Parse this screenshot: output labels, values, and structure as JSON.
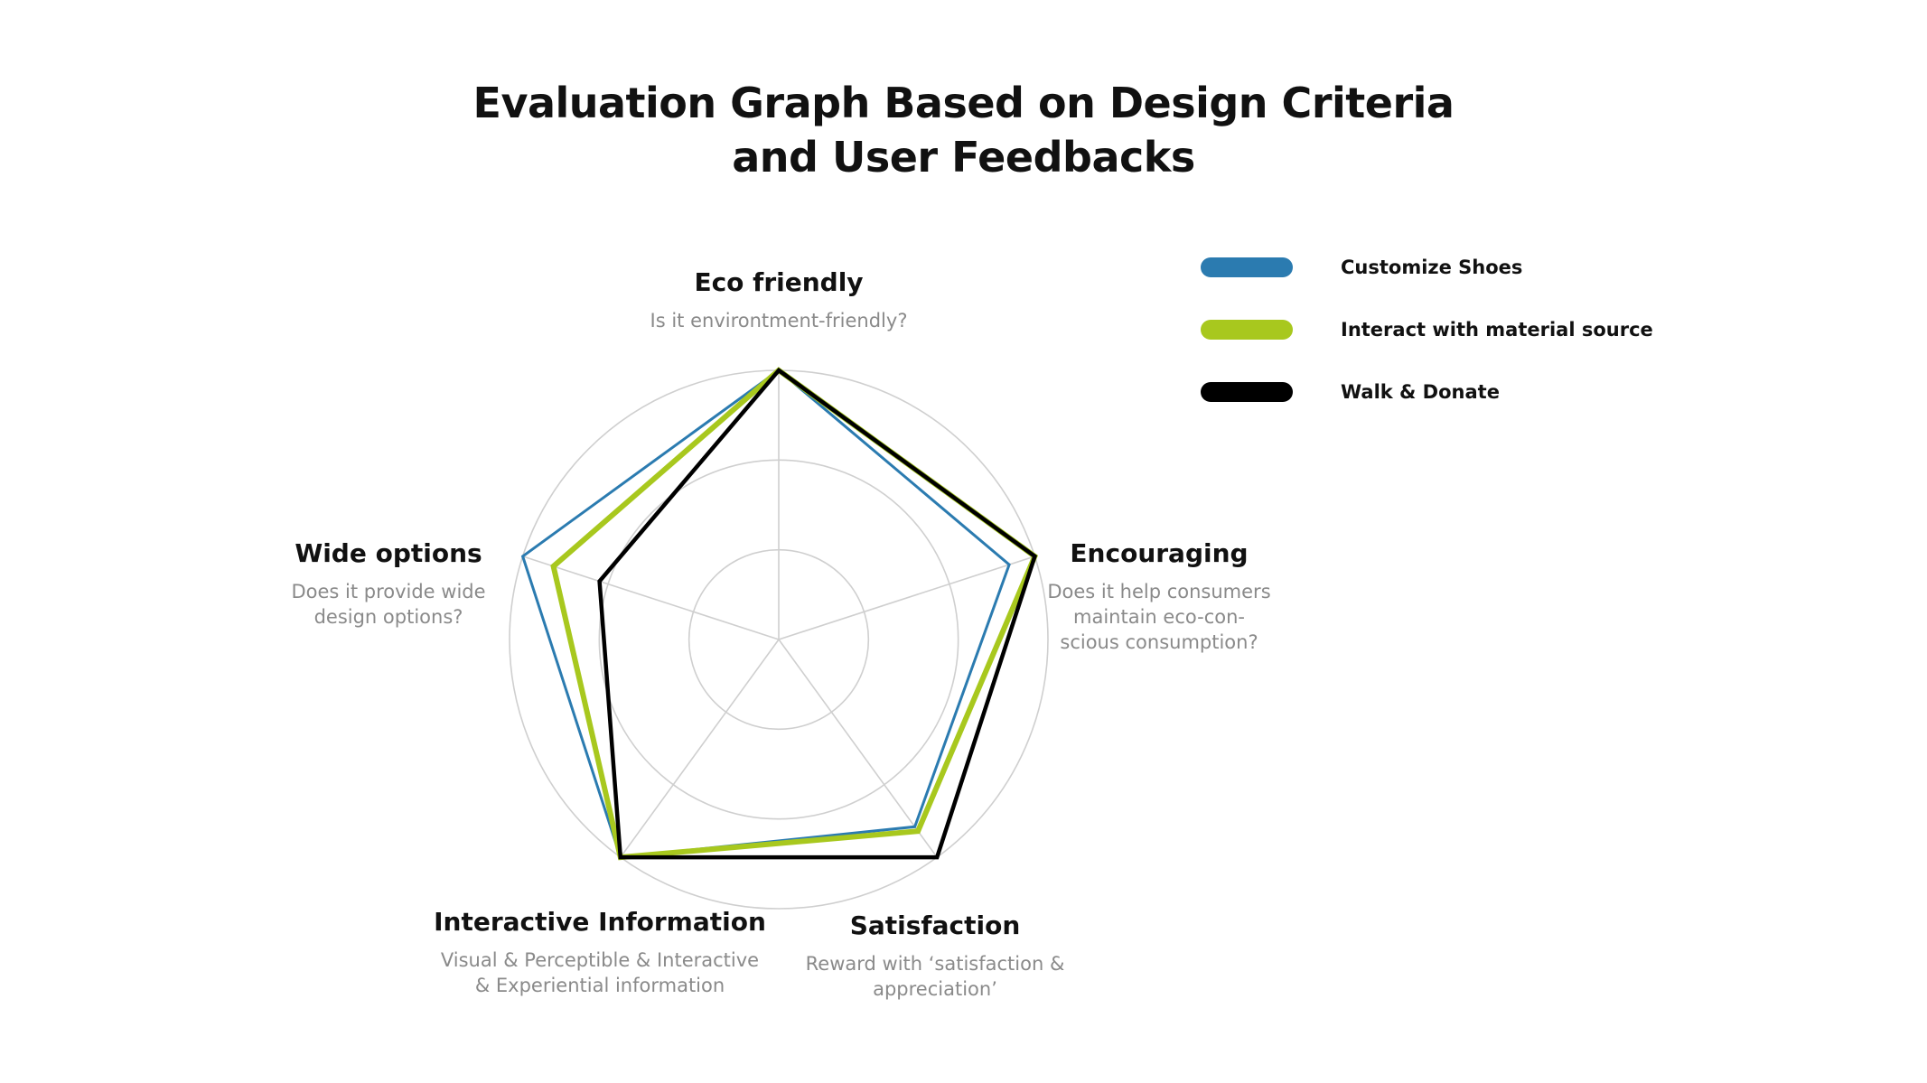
{
  "chart_data": {
    "type": "radar",
    "title_lines": [
      "Evaluation Graph Based on Design Criteria",
      "and User Feedbacks"
    ],
    "range": [
      0,
      5
    ],
    "grid": true,
    "axes": [
      {
        "label": "Eco friendly",
        "description": [
          "Is it environtment-friendly?"
        ]
      },
      {
        "label": "Encouraging",
        "description": [
          "Does it help consumers",
          "maintain eco-con-",
          "scious consumption?"
        ]
      },
      {
        "label": "Satisfaction",
        "description": [
          "Reward with ‘satisfaction &",
          "appreciation’"
        ]
      },
      {
        "label": "Interactive Information",
        "description": [
          "Visual & Perceptible & Interactive",
          "& Experiential information"
        ]
      },
      {
        "label": "Wide options",
        "description": [
          "Does it provide wide",
          "design options?"
        ]
      }
    ],
    "series": [
      {
        "name": "Customize Shoes",
        "color": "#2b7bb0",
        "values": [
          5,
          4.5,
          4.3,
          5,
          5
        ]
      },
      {
        "name": "Interact with material source",
        "color": "#a8c81e",
        "values": [
          5,
          5,
          4.4,
          5,
          4.4
        ]
      },
      {
        "name": "Walk & Donate",
        "color": "#000000",
        "values": [
          5,
          5,
          5,
          5,
          3.5
        ]
      }
    ],
    "legend_position": "top-right"
  }
}
